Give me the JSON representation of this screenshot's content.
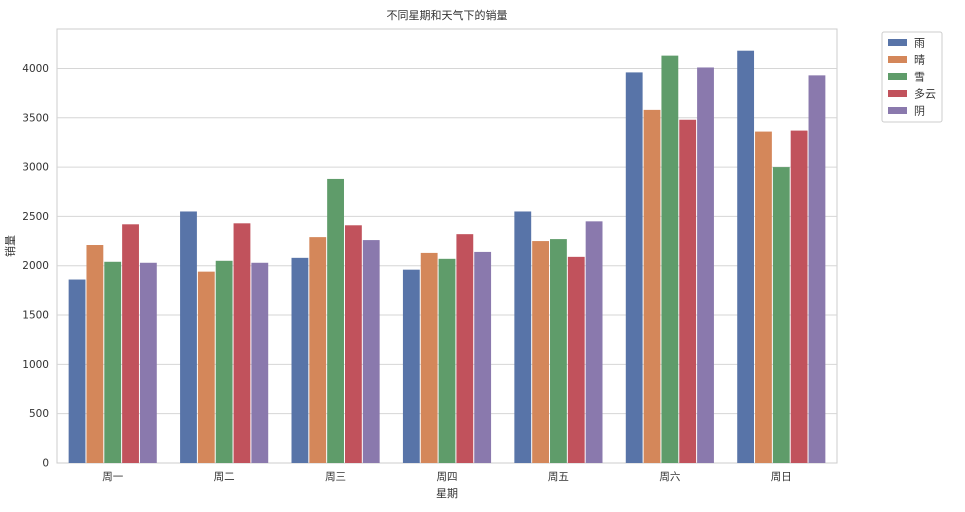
{
  "chart_data": {
    "type": "bar",
    "title": "不同星期和天气下的销量",
    "xlabel": "星期",
    "ylabel": "销量",
    "categories": [
      "周一",
      "周二",
      "周三",
      "周四",
      "周五",
      "周六",
      "周日"
    ],
    "ylim": [
      0,
      4400
    ],
    "yticks": [
      0,
      500,
      1000,
      1500,
      2000,
      2500,
      3000,
      3500,
      4000
    ],
    "grid": true,
    "legend_position": "outside-top-right",
    "series": [
      {
        "name": "雨",
        "color": "#5874a8",
        "values": [
          1860,
          2550,
          2080,
          1960,
          2550,
          3960,
          4180
        ]
      },
      {
        "name": "晴",
        "color": "#d4875a",
        "values": [
          2210,
          1940,
          2290,
          2130,
          2250,
          3580,
          3360
        ]
      },
      {
        "name": "雪",
        "color": "#5f9c6a",
        "values": [
          2040,
          2050,
          2880,
          2070,
          2270,
          4130,
          3000
        ]
      },
      {
        "name": "多云",
        "color": "#c1525c",
        "values": [
          2420,
          2430,
          2410,
          2320,
          2090,
          3480,
          3370
        ]
      },
      {
        "name": "阴",
        "color": "#8a79ad",
        "values": [
          2030,
          2030,
          2260,
          2140,
          2450,
          4010,
          3930
        ]
      }
    ]
  }
}
